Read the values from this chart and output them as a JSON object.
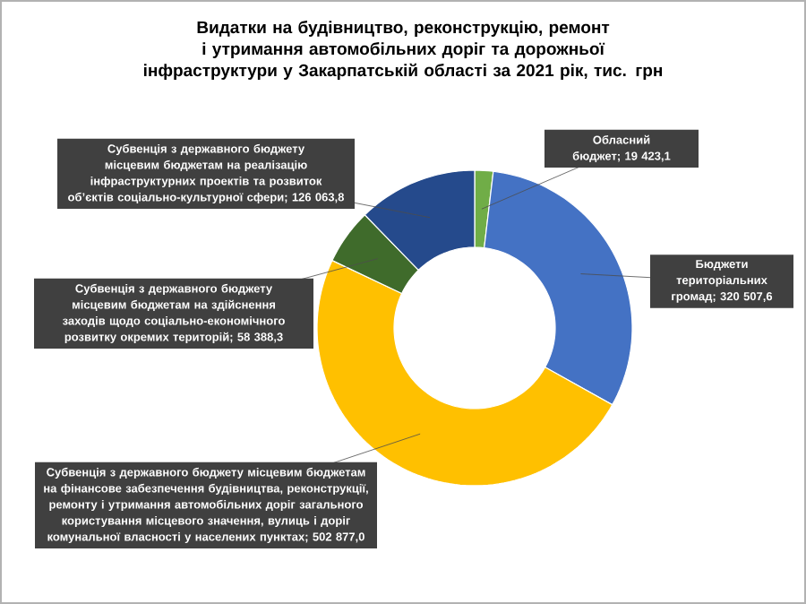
{
  "chart_data": {
    "type": "donut",
    "title": "Видатки на будівництво, реконструкцію, ремонт і утримання автомобільних доріг та дорожньої інфраструктури у Закарпатській області за 2021 рік, тис. грн",
    "categories": [
      "Обласний бюджет",
      "Бюджети територіальних громад",
      "Субвенція з державного бюджету місцевим бюджетам на фінансове забезпечення будівництва, реконструкції, ремонту і утримання автомобільних доріг загального користування місцевого значення, вулиць і доріг комунальної власності у населених пунктах",
      "Субвенція з державного бюджету місцевим бюджетам на здійснення заходів щодо соціально-економічного розвитку окремих територій",
      "Субвенція з державного бюджету місцевим бюджетам на реалізацію інфраструктурних проектів та розвиток об’єктів соціально-культурної сфери"
    ],
    "values": [
      19423.1,
      320507.6,
      502877.0,
      58388.3,
      126063.8
    ],
    "colors": [
      "#70ad47",
      "#4472c4",
      "#ffc000",
      "#3f6b2b",
      "#254a8c"
    ],
    "value_labels": [
      "; 19 423,1",
      "; 320 507,6",
      "; 502 877,0",
      "; 58 388,3",
      "; 126 063,8"
    ]
  }
}
